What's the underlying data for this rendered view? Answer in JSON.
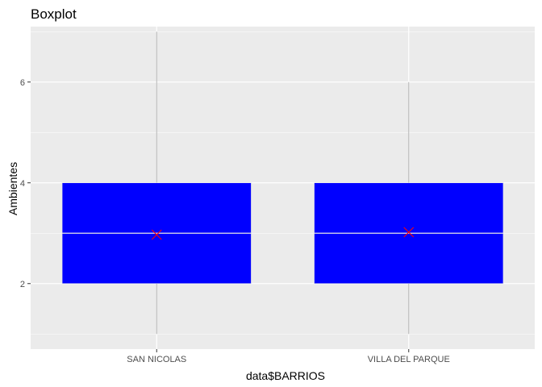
{
  "chart_data": {
    "type": "boxplot",
    "title": "Boxplot",
    "xlabel": "data$BARRIOS",
    "ylabel": "Ambientes",
    "categories": [
      "SAN NICOLAS",
      "VILLA DEL PARQUE"
    ],
    "boxes": [
      {
        "category": "SAN NICOLAS",
        "whisker_low": 1,
        "q1": 2,
        "median": 3,
        "q3": 4,
        "whisker_high": 7,
        "mean": 2.97
      },
      {
        "category": "VILLA DEL PARQUE",
        "whisker_low": 1,
        "q1": 2,
        "median": 3,
        "q3": 4,
        "whisker_high": 6,
        "mean": 3.02
      }
    ],
    "y_ticks": [
      2,
      4,
      6
    ],
    "ylim": [
      0.7,
      7.1
    ],
    "grid": true,
    "box_color": "#0000ff",
    "mean_marker_color": "#ff0000",
    "panel_background": "#ebebeb"
  }
}
